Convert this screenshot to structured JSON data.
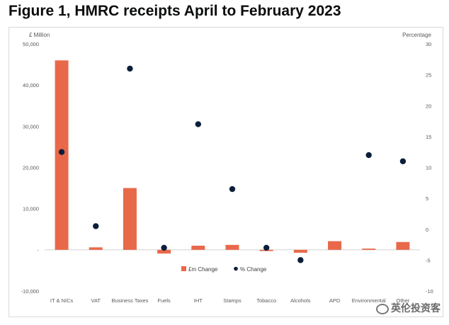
{
  "page": {
    "title": "Figure 1, HMRC receipts April to February 2023"
  },
  "chart_data": {
    "type": "bar",
    "title": "",
    "categories": [
      "IT & NICs",
      "VAT",
      "Business Taxes",
      "Fuels",
      "IHT",
      "Stamps",
      "Tobacco",
      "Alcohols",
      "APD",
      "Environmental",
      "Other"
    ],
    "series": [
      {
        "name": "£m Change",
        "type": "bar",
        "axis": "left",
        "color": "#e8694a",
        "values": [
          46000,
          600,
          15000,
          -900,
          1000,
          1200,
          -300,
          -700,
          2100,
          300,
          1900
        ]
      },
      {
        "name": "% Change",
        "type": "scatter",
        "axis": "right",
        "color": "#0b1f3a",
        "values": [
          12.5,
          0.5,
          26,
          -3,
          17,
          6.5,
          -3,
          -5,
          null,
          12,
          11
        ]
      }
    ],
    "y_left": {
      "label": "£ Million",
      "ylim": [
        -10000,
        50000
      ],
      "ticks": [
        -10000,
        0,
        10000,
        20000,
        30000,
        40000,
        50000
      ],
      "tick_labels": [
        "-10,000",
        "-",
        "10,000",
        "20,000",
        "30,000",
        "40,000",
        "50,000"
      ]
    },
    "y_right": {
      "label": "Percentage",
      "ylim": [
        -10,
        30
      ],
      "ticks": [
        -10,
        -5,
        0,
        5,
        10,
        15,
        20,
        25,
        30
      ],
      "tick_labels": [
        "-10",
        "-5",
        "0",
        "5",
        "10",
        "15",
        "20",
        "25",
        "30"
      ]
    },
    "legend": {
      "position": "bottom-center",
      "items": [
        "£m Change",
        "% Change"
      ]
    },
    "grid": false
  },
  "watermark": {
    "text": "英伦投资客"
  }
}
